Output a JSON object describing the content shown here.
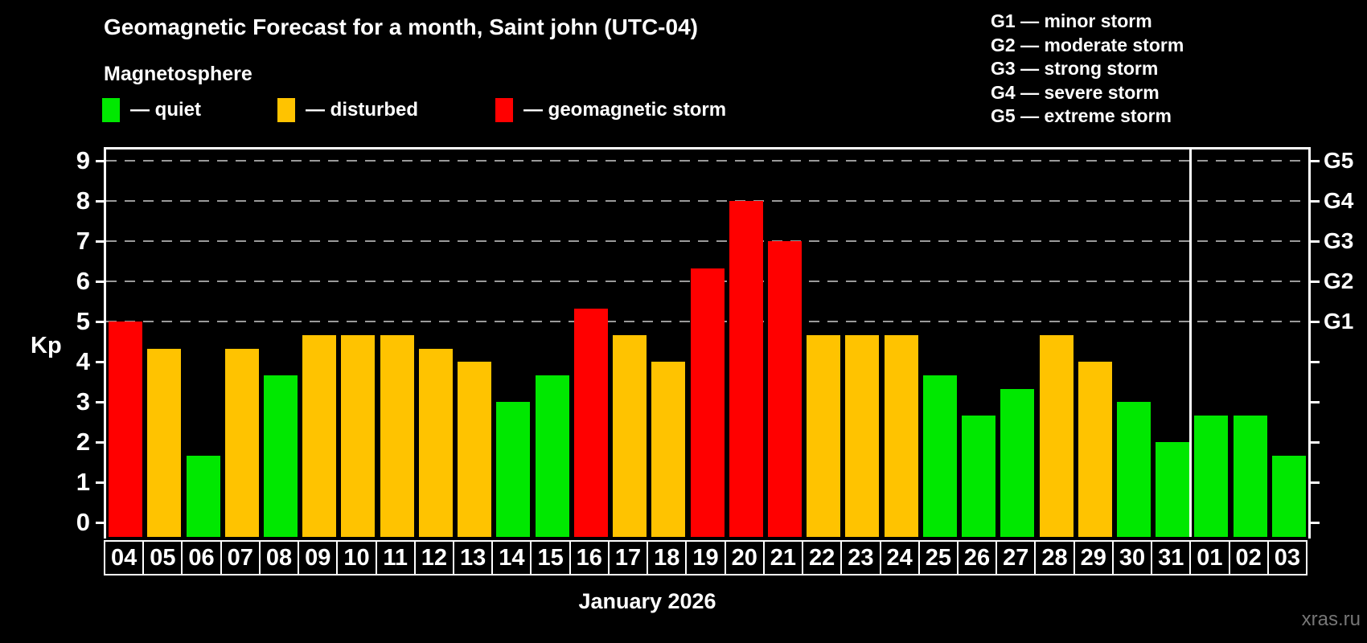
{
  "title": "Geomagnetic Forecast for a month, Saint john (UTC-04)",
  "subtitle": "Magnetosphere",
  "colors": {
    "quiet": "#00E800",
    "disturbed": "#FFC300",
    "storm": "#FF0000",
    "axis": "#FFFFFF",
    "grid": "#9A9A9A",
    "watermark": "#767676"
  },
  "legend": {
    "items": [
      {
        "key": "quiet",
        "label": "— quiet"
      },
      {
        "key": "disturbed",
        "label": "— disturbed"
      },
      {
        "key": "storm",
        "label": "— geomagnetic storm"
      }
    ]
  },
  "g_legend": [
    "G1 — minor storm",
    "G2 — moderate storm",
    "G3 — strong storm",
    "G4 — severe storm",
    "G5 — extreme storm"
  ],
  "chart_data": {
    "type": "bar",
    "title": "Geomagnetic Forecast for a month, Saint john (UTC-04)",
    "ylabel": "Kp",
    "xlabel": "January 2026",
    "ylim": [
      0,
      9.3
    ],
    "yticks": [
      0,
      1,
      2,
      3,
      4,
      5,
      6,
      7,
      8,
      9
    ],
    "gridlines_kp": [
      5,
      6,
      7,
      8,
      9
    ],
    "grid": "dashed horizontal at Kp 5-9",
    "legend_position": "top-left",
    "right_axis": [
      {
        "kp": 5,
        "label": "G1"
      },
      {
        "kp": 6,
        "label": "G2"
      },
      {
        "kp": 7,
        "label": "G3"
      },
      {
        "kp": 8,
        "label": "G4"
      },
      {
        "kp": 9,
        "label": "G5"
      }
    ],
    "month_separator_after_index": 27,
    "categories": [
      "04",
      "05",
      "06",
      "07",
      "08",
      "09",
      "10",
      "11",
      "12",
      "13",
      "14",
      "15",
      "16",
      "17",
      "18",
      "19",
      "20",
      "21",
      "22",
      "23",
      "24",
      "25",
      "26",
      "27",
      "28",
      "29",
      "30",
      "31",
      "01",
      "02",
      "03"
    ],
    "values": [
      5.0,
      4.33,
      1.67,
      4.33,
      3.67,
      4.67,
      4.67,
      4.67,
      4.33,
      4.0,
      3.0,
      3.67,
      5.33,
      4.67,
      4.0,
      6.33,
      8.0,
      7.0,
      4.67,
      4.67,
      4.67,
      3.67,
      2.67,
      3.33,
      4.67,
      4.0,
      3.0,
      2.0,
      2.67,
      2.67,
      1.67
    ],
    "levels": [
      "storm",
      "disturbed",
      "quiet",
      "disturbed",
      "quiet",
      "disturbed",
      "disturbed",
      "disturbed",
      "disturbed",
      "disturbed",
      "quiet",
      "quiet",
      "storm",
      "disturbed",
      "disturbed",
      "storm",
      "storm",
      "storm",
      "disturbed",
      "disturbed",
      "disturbed",
      "quiet",
      "quiet",
      "quiet",
      "disturbed",
      "disturbed",
      "quiet",
      "quiet",
      "quiet",
      "quiet",
      "quiet"
    ]
  },
  "footer": {
    "month_label": "January 2026",
    "watermark": "xras.ru"
  }
}
